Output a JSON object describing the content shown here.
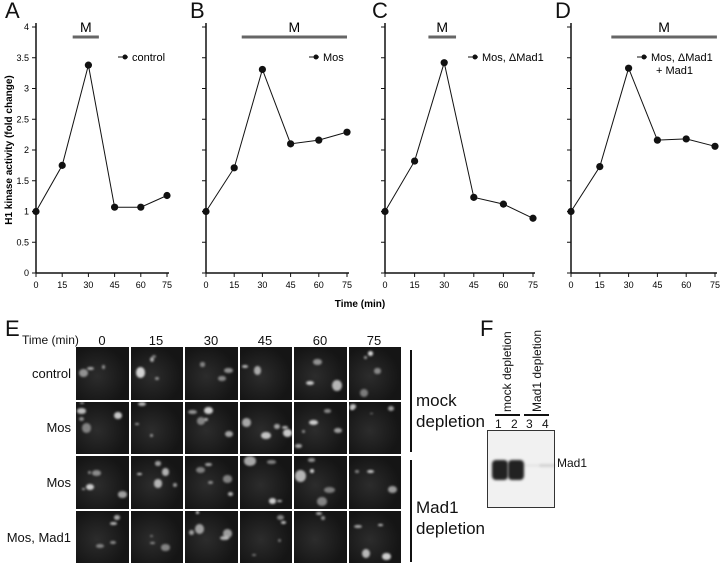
{
  "panel_labels": {
    "a": "A",
    "b": "B",
    "c": "C",
    "d": "D",
    "e": "E",
    "f": "F"
  },
  "y_axis_label": "H1 kinase activity (fold change)",
  "x_axis_label": "Time (min)",
  "colors": {
    "line": "#111111",
    "m_bar": "#666666",
    "background": "#ffffff"
  },
  "chart_data": [
    {
      "type": "line",
      "panel": "A",
      "legend": "control",
      "legend2": "",
      "x": [
        0,
        15,
        30,
        45,
        60,
        75
      ],
      "values": [
        1.0,
        1.75,
        3.38,
        1.07,
        1.07,
        1.26
      ],
      "m_phase": [
        21,
        36
      ],
      "m_label": "M",
      "xlim": [
        0,
        75
      ],
      "ylim": [
        0,
        4
      ],
      "xticks": [
        "0",
        "15",
        "30",
        "45",
        "60",
        "75"
      ],
      "yticks": [
        "0",
        "0.5",
        "1",
        "1.5",
        "2",
        "2.5",
        "3",
        "3.5",
        "4"
      ]
    },
    {
      "type": "line",
      "panel": "B",
      "legend": "Mos",
      "legend2": "",
      "x": [
        0,
        15,
        30,
        45,
        60,
        75
      ],
      "values": [
        1.0,
        1.71,
        3.31,
        2.1,
        2.16,
        2.29
      ],
      "m_phase": [
        19,
        75
      ],
      "m_label": "M",
      "xlim": [
        0,
        75
      ],
      "ylim": [
        0,
        4
      ],
      "xticks": [
        "0",
        "15",
        "30",
        "45",
        "60",
        "75"
      ],
      "yticks": []
    },
    {
      "type": "line",
      "panel": "C",
      "legend": "Mos, ΔMad1",
      "legend2": "",
      "x": [
        0,
        15,
        30,
        45,
        60,
        75
      ],
      "values": [
        1.0,
        1.82,
        3.42,
        1.23,
        1.12,
        0.89
      ],
      "m_phase": [
        22,
        36
      ],
      "m_label": "M",
      "xlim": [
        0,
        75
      ],
      "ylim": [
        0,
        4
      ],
      "xticks": [
        "0",
        "15",
        "30",
        "45",
        "60",
        "75"
      ],
      "yticks": []
    },
    {
      "type": "line",
      "panel": "D",
      "legend": "Mos, ΔMad1",
      "legend2": "+ Mad1",
      "x": [
        0,
        15,
        30,
        45,
        60,
        75
      ],
      "values": [
        1.0,
        1.73,
        3.33,
        2.16,
        2.18,
        2.06
      ],
      "m_phase": [
        21,
        76
      ],
      "m_label": "M",
      "xlim": [
        0,
        75
      ],
      "ylim": [
        0,
        4
      ],
      "xticks": [
        "0",
        "15",
        "30",
        "45",
        "60",
        "75"
      ],
      "yticks": []
    }
  ],
  "panel_e": {
    "time_label": "Time (min)",
    "columns": [
      "0",
      "15",
      "30",
      "45",
      "60",
      "75"
    ],
    "rows": [
      "control",
      "Mos",
      "Mos",
      "Mos, Mad1"
    ],
    "groups": [
      {
        "line1": "mock",
        "line2": "depletion"
      },
      {
        "line1": "Mad1",
        "line2": "depletion"
      }
    ]
  },
  "panel_f": {
    "groups": [
      "mock depletion",
      "Mad1 depletion"
    ],
    "lanes": [
      "1",
      "2",
      "3",
      "4"
    ],
    "band_label": "Mad1",
    "band_intensity": [
      1.0,
      1.0,
      0.05,
      0.15
    ]
  }
}
